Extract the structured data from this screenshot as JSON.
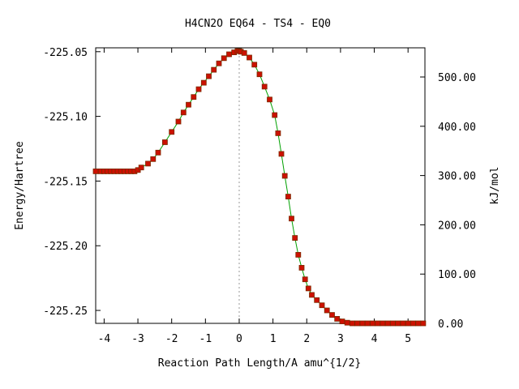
{
  "chart_data": {
    "type": "line",
    "title": "H4CN2O   EQ64 - TS4 - EQ0",
    "xlabel": "Reaction Path Length/A amu^{1/2}",
    "ylabel": "Energy/Hartree",
    "y2label": "kJ/mol",
    "xlim": [
      -4.25,
      5.5
    ],
    "ylim": [
      -225.26,
      -225.047
    ],
    "x_ticks": [
      -4,
      -3,
      -2,
      -1,
      0,
      1,
      2,
      3,
      4,
      5
    ],
    "x_tick_labels": [
      "-4",
      "-3",
      "-2",
      "-1",
      "0",
      "1",
      "2",
      "3",
      "4",
      "5"
    ],
    "y_ticks": [
      -225.05,
      -225.1,
      -225.15,
      -225.2,
      -225.25
    ],
    "y_tick_labels": [
      "-225.05",
      "-225.10",
      "-225.15",
      "-225.20",
      "-225.25"
    ],
    "y2_ticks": [
      0,
      100,
      200,
      300,
      400,
      500
    ],
    "y2_tick_labels": [
      "0.00",
      "100.00",
      "200.00",
      "300.00",
      "400.00",
      "500.00"
    ],
    "y2_reference_energy": -225.26,
    "hartree_to_kjmol": 2625.5,
    "ts_marker_x": 0,
    "grid": false,
    "colors": {
      "curve": "#00a000",
      "points": "#cc1100",
      "point_edge": "#7a2a00",
      "ts_marker": "#999999",
      "axes": "#000000"
    },
    "series": [
      {
        "x": [
          -4.25,
          -4.1,
          -4.0,
          -3.9,
          -3.8,
          -3.7,
          -3.6,
          -3.5,
          -3.4,
          -3.3,
          -3.2,
          -3.1,
          -3.0,
          -2.9,
          -2.7,
          -2.55,
          -2.4,
          -2.2,
          -2.0,
          -1.8,
          -1.65,
          -1.5,
          -1.35,
          -1.2,
          -1.05,
          -0.9,
          -0.75,
          -0.6,
          -0.45,
          -0.3,
          -0.15,
          -0.05,
          0.0,
          0.05,
          0.15,
          0.3,
          0.45,
          0.6,
          0.75,
          0.9,
          1.05,
          1.15,
          1.25,
          1.35,
          1.45,
          1.55,
          1.65,
          1.75,
          1.85,
          1.95,
          2.05,
          2.15,
          2.3,
          2.45,
          2.6,
          2.75,
          2.9,
          3.05,
          3.2,
          3.35,
          3.5,
          3.65,
          3.8,
          3.95,
          4.1,
          4.25,
          4.4,
          4.55,
          4.7,
          4.85,
          5.0,
          5.15,
          5.3,
          5.45
        ],
        "y": [
          -225.1425,
          -225.1425,
          -225.1425,
          -225.1425,
          -225.1425,
          -225.1425,
          -225.1425,
          -225.1425,
          -225.1425,
          -225.1425,
          -225.1425,
          -225.1425,
          -225.1415,
          -225.1395,
          -225.1365,
          -225.133,
          -225.128,
          -225.12,
          -225.112,
          -225.104,
          -225.097,
          -225.091,
          -225.085,
          -225.079,
          -225.074,
          -225.069,
          -225.064,
          -225.059,
          -225.055,
          -225.052,
          -225.0505,
          -225.0495,
          -225.0495,
          -225.05,
          -225.051,
          -225.0545,
          -225.06,
          -225.0675,
          -225.077,
          -225.087,
          -225.099,
          -225.113,
          -225.129,
          -225.146,
          -225.162,
          -225.179,
          -225.194,
          -225.207,
          -225.217,
          -225.226,
          -225.233,
          -225.238,
          -225.242,
          -225.246,
          -225.25,
          -225.2535,
          -225.2565,
          -225.2585,
          -225.2595,
          -225.26,
          -225.26,
          -225.26,
          -225.26,
          -225.26,
          -225.26,
          -225.26,
          -225.26,
          -225.26,
          -225.26,
          -225.26,
          -225.26,
          -225.26,
          -225.26,
          -225.26
        ]
      }
    ]
  }
}
